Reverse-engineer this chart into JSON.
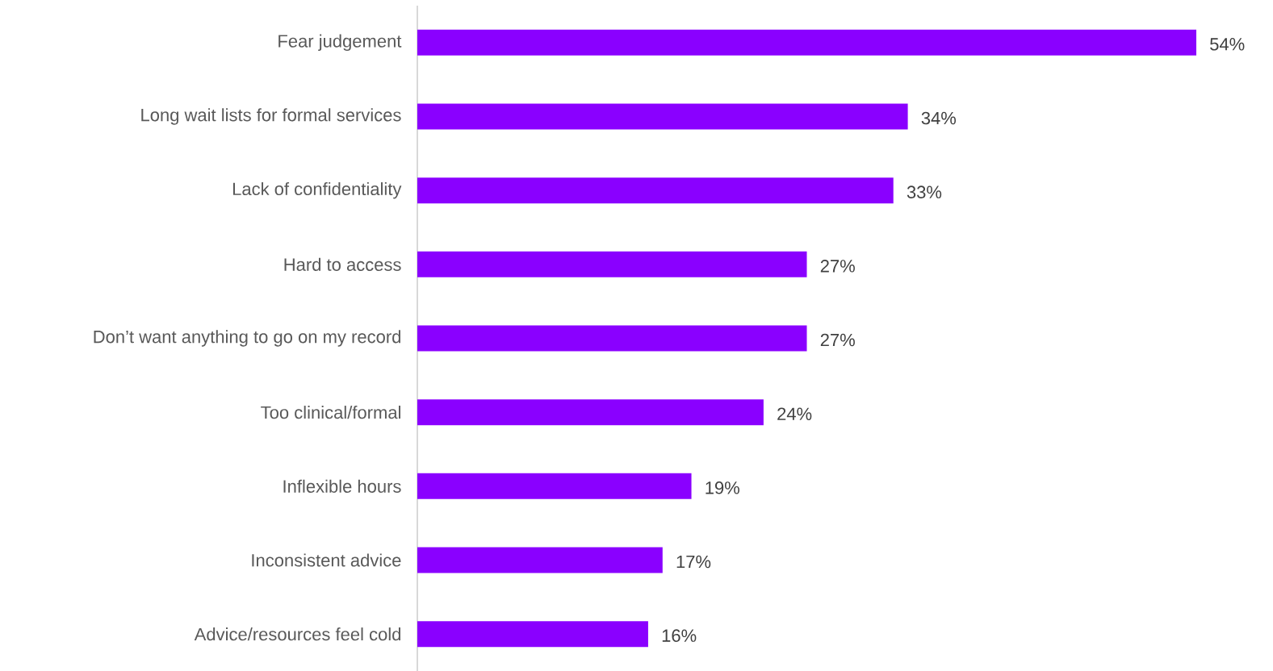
{
  "chart_data": {
    "type": "bar",
    "orientation": "horizontal",
    "categories": [
      "Fear judgement",
      "Long wait lists for formal services",
      "Lack of confidentiality",
      "Hard to access",
      "Don’t want anything to go on my record",
      "Too clinical/formal",
      "Inflexible hours",
      "Inconsistent advice",
      "Advice/resources feel cold"
    ],
    "values": [
      54,
      34,
      33,
      27,
      27,
      24,
      19,
      17,
      16
    ],
    "value_labels": [
      "54%",
      "34%",
      "33%",
      "27%",
      "27%",
      "24%",
      "19%",
      "17%",
      "16%"
    ],
    "color": "#8a00ff"
  }
}
